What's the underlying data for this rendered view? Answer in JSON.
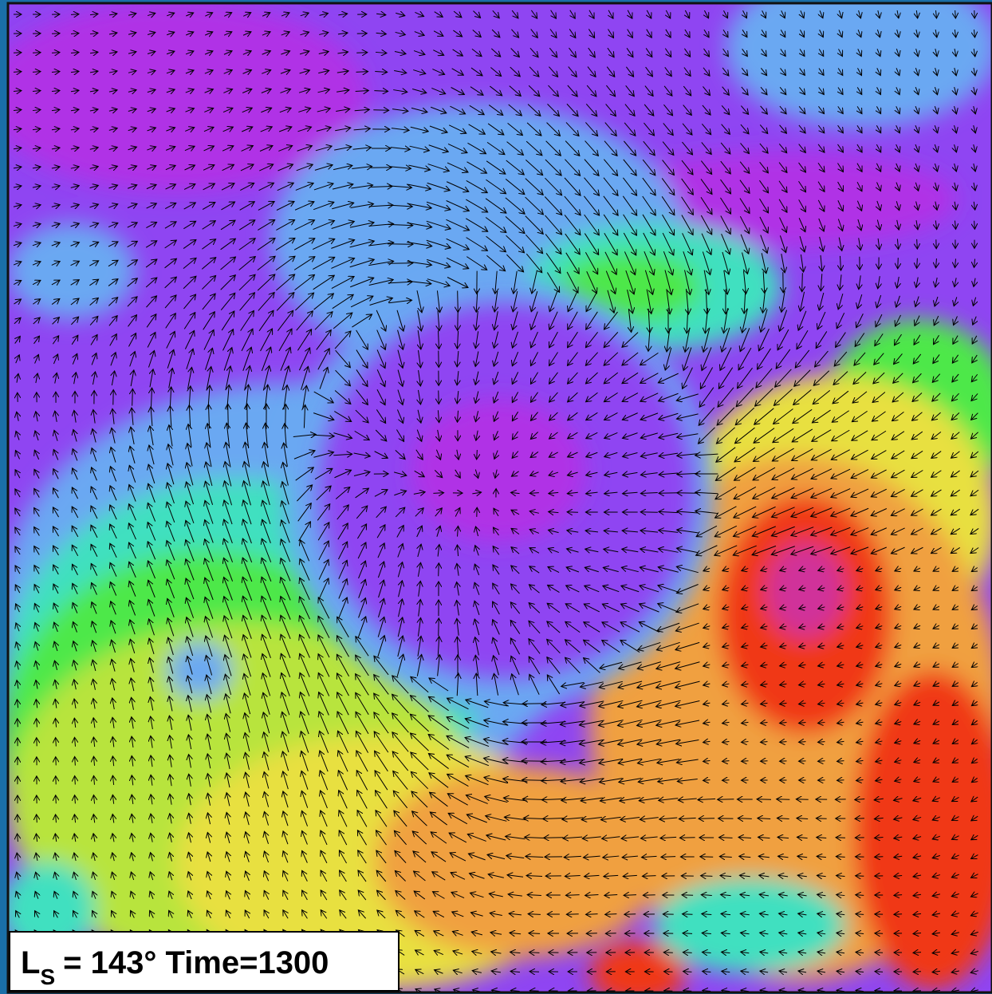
{
  "label": {
    "symbol": "L",
    "subscript": "S",
    "text": "= 143°  Time=1300"
  }
}
